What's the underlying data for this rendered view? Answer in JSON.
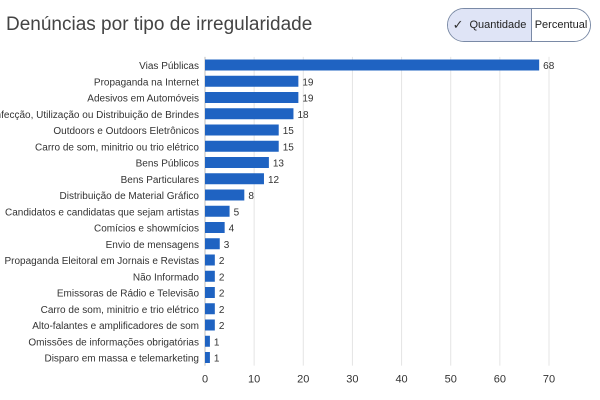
{
  "header": {
    "title": "Denúncias por tipo de irregularidade"
  },
  "toggle": {
    "quantidade_label": "Quantidade",
    "percentual_label": "Percentual",
    "selected": "Quantidade"
  },
  "colors": {
    "bar": "#1f63c2",
    "grid": "#e4e4e4",
    "toggle_selected_bg": "#dfe4f6"
  },
  "chart_data": {
    "type": "bar",
    "orientation": "horizontal",
    "title": "Denúncias por tipo de irregularidade",
    "categories": [
      "Vias Públicas",
      "Propaganda na Internet",
      "Adesivos em Automóveis",
      "Confecção, Utilização ou Distribuição de Brindes",
      "Outdoors e Outdoors Eletrônicos",
      "Carro de som, minitrio ou trio elétrico",
      "Bens Públicos",
      "Bens Particulares",
      "Distribuição de Material Gráfico",
      "Candidatos e candidatas que sejam artistas",
      "Comícios e showmícios",
      "Envio de mensagens",
      "Propaganda Eleitoral em Jornais e Revistas",
      "Não Informado",
      "Emissoras de Rádio e Televisão",
      "Carro de som, minitrio e trio elétrico",
      "Alto-falantes e amplificadores de som",
      "Omissões de informações obrigatórias",
      "Disparo em massa e telemarketing"
    ],
    "values": [
      68,
      19,
      19,
      18,
      15,
      15,
      13,
      12,
      8,
      5,
      4,
      3,
      2,
      2,
      2,
      2,
      2,
      1,
      1
    ],
    "xlim": [
      0,
      70
    ],
    "xticks": [
      0,
      10,
      20,
      30,
      40,
      50,
      60,
      70
    ],
    "grid": "vertical",
    "data_labels": true
  }
}
